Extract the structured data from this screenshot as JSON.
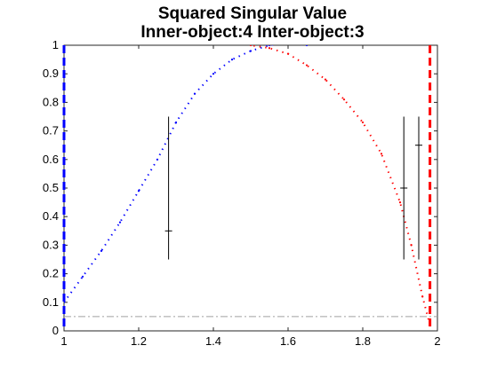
{
  "chart_data": {
    "type": "line",
    "title": [
      "Squared Singular Value",
      "Inner-object:4  Inter-object:3"
    ],
    "xlim": [
      1,
      2
    ],
    "ylim": [
      0,
      1
    ],
    "xticks": [
      "1",
      "1.2",
      "1.4",
      "1.6",
      "1.8",
      "2"
    ],
    "yticks": [
      "0",
      "0.1",
      "0.2",
      "0.3",
      "0.4",
      "0.5",
      "0.6",
      "0.7",
      "0.8",
      "0.9",
      "1"
    ],
    "grid": false,
    "colors": {
      "blue": "#0000ff",
      "red": "#ff0000",
      "threshold": "#a0a0a0",
      "errorbar": "#000000"
    },
    "series": [
      {
        "style": "dotted",
        "color": "#0000ff",
        "x": [
          1.0,
          1.05,
          1.1,
          1.15,
          1.2,
          1.25,
          1.3,
          1.35,
          1.4,
          1.45,
          1.5,
          1.55,
          1.6,
          1.65
        ],
        "y": [
          0.1,
          0.19,
          0.28,
          0.38,
          0.49,
          0.6,
          0.73,
          0.83,
          0.9,
          0.95,
          0.98,
          1.0,
          1.01,
          1.0
        ]
      },
      {
        "style": "dotted",
        "color": "#ff0000",
        "x": [
          1.45,
          1.5,
          1.55,
          1.6,
          1.65,
          1.7,
          1.75,
          1.8,
          1.85,
          1.9,
          1.93,
          1.96,
          1.98
        ],
        "y": [
          1.03,
          1.0,
          0.99,
          0.97,
          0.93,
          0.88,
          0.81,
          0.73,
          0.62,
          0.45,
          0.3,
          0.12,
          0.02
        ]
      }
    ],
    "error_bars": [
      {
        "x": 1.28,
        "y": 0.35,
        "low": 0.25,
        "high": 0.75
      },
      {
        "x": 1.91,
        "y": 0.5,
        "low": 0.25,
        "high": 0.75
      },
      {
        "x": 1.95,
        "y": 0.65,
        "low": 0.25,
        "high": 0.75
      }
    ],
    "vertical_lines": [
      {
        "x": 1.0,
        "color": "#0000ff",
        "style": "dashed"
      },
      {
        "x": 1.98,
        "color": "#ff0000",
        "style": "dashed"
      }
    ],
    "horizontal_lines": [
      {
        "y": 0.05,
        "color": "#a0a0a0",
        "style": "dash-dot"
      }
    ]
  }
}
